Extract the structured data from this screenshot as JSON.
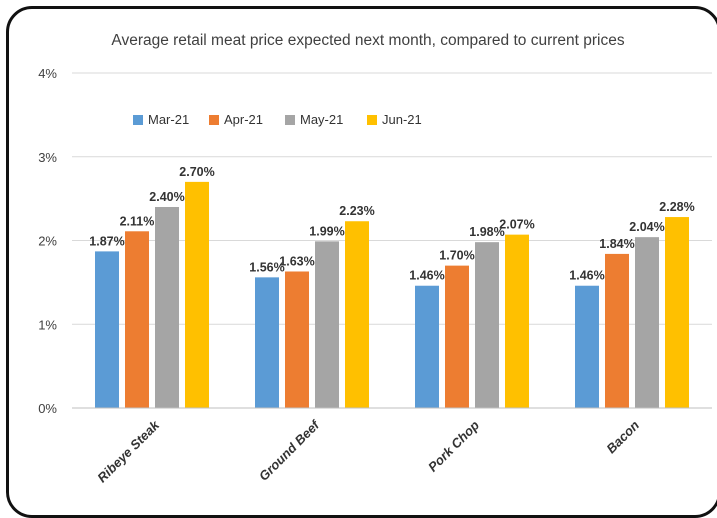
{
  "chart_data": {
    "type": "bar",
    "title": "Average retail meat price expected next month, compared to current prices",
    "xlabel": "",
    "ylabel": "",
    "ylim": [
      0,
      4
    ],
    "yticks": [
      "0%",
      "1%",
      "2%",
      "3%",
      "4%"
    ],
    "grid": true,
    "legend_position": "top-left",
    "categories": [
      "Ribeye Steak",
      "Ground Beef",
      "Pork Chop",
      "Bacon"
    ],
    "series": [
      {
        "name": "Mar-21",
        "color": "#5b9bd5",
        "values": [
          1.87,
          1.56,
          1.46,
          1.46
        ],
        "labels": [
          "1.87%",
          "1.56%",
          "1.46%",
          "1.46%"
        ]
      },
      {
        "name": "Apr-21",
        "color": "#ed7d31",
        "values": [
          2.11,
          1.63,
          1.7,
          1.84
        ],
        "labels": [
          "2.11%",
          "1.63%",
          "1.70%",
          "1.84%"
        ]
      },
      {
        "name": "May-21",
        "color": "#a5a5a5",
        "values": [
          2.4,
          1.99,
          1.98,
          2.04
        ],
        "labels": [
          "2.40%",
          "1.99%",
          "1.98%",
          "2.04%"
        ]
      },
      {
        "name": "Jun-21",
        "color": "#ffc000",
        "values": [
          2.7,
          2.23,
          2.07,
          2.28
        ],
        "labels": [
          "2.70%",
          "2.23%",
          "2.07%",
          "2.28%"
        ]
      }
    ]
  }
}
